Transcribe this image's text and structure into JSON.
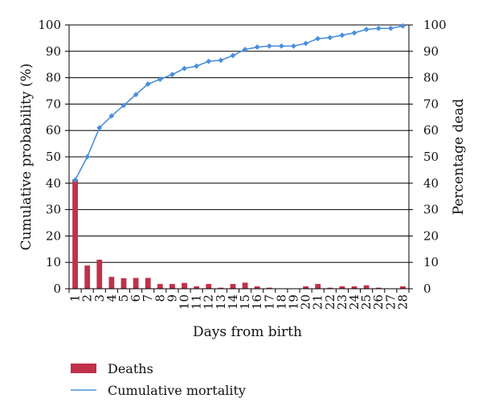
{
  "chart_data": {
    "type": "bar+line",
    "x_label": "Days from birth",
    "y_left_label": "Cumulative probability (%)",
    "y_right_label": "Percentage dead",
    "y_left_range": [
      0,
      100
    ],
    "y_right_range": [
      0,
      100
    ],
    "y_ticks": [
      0,
      10,
      20,
      30,
      40,
      50,
      60,
      70,
      80,
      90,
      100
    ],
    "categories": [
      "1",
      "2",
      "3",
      "4",
      "5",
      "6",
      "7",
      "8",
      "9",
      "10",
      "11",
      "12",
      "13",
      "14",
      "15",
      "16",
      "17",
      "18",
      "19",
      "20",
      "21",
      "22",
      "23",
      "24",
      "25",
      "26",
      "27",
      "28"
    ],
    "grid": "horizontal",
    "legend_position": "bottom-left",
    "series": [
      {
        "name": "Deaths",
        "type": "bar",
        "axis": "right",
        "color": "#c0314a",
        "values": [
          41.5,
          8.8,
          11.0,
          4.5,
          4.0,
          4.1,
          4.1,
          1.8,
          1.8,
          2.2,
          0.9,
          1.8,
          0.4,
          1.8,
          2.3,
          0.9,
          0.4,
          0,
          0,
          0.9,
          1.8,
          0.4,
          0.9,
          0.9,
          1.3,
          0.4,
          0,
          0.9
        ]
      },
      {
        "name": "Cumulative mortality",
        "type": "line",
        "axis": "left",
        "color": "#4a8fdc",
        "marker": "diamond",
        "values": [
          41.2,
          50.0,
          61.0,
          65.5,
          69.5,
          73.6,
          77.6,
          79.4,
          81.2,
          83.5,
          84.4,
          86.2,
          86.6,
          88.4,
          90.7,
          91.6,
          92.0,
          92.0,
          92.0,
          93.0,
          94.8,
          95.2,
          96.1,
          97.0,
          98.3,
          98.7,
          98.7,
          99.6
        ]
      }
    ]
  }
}
